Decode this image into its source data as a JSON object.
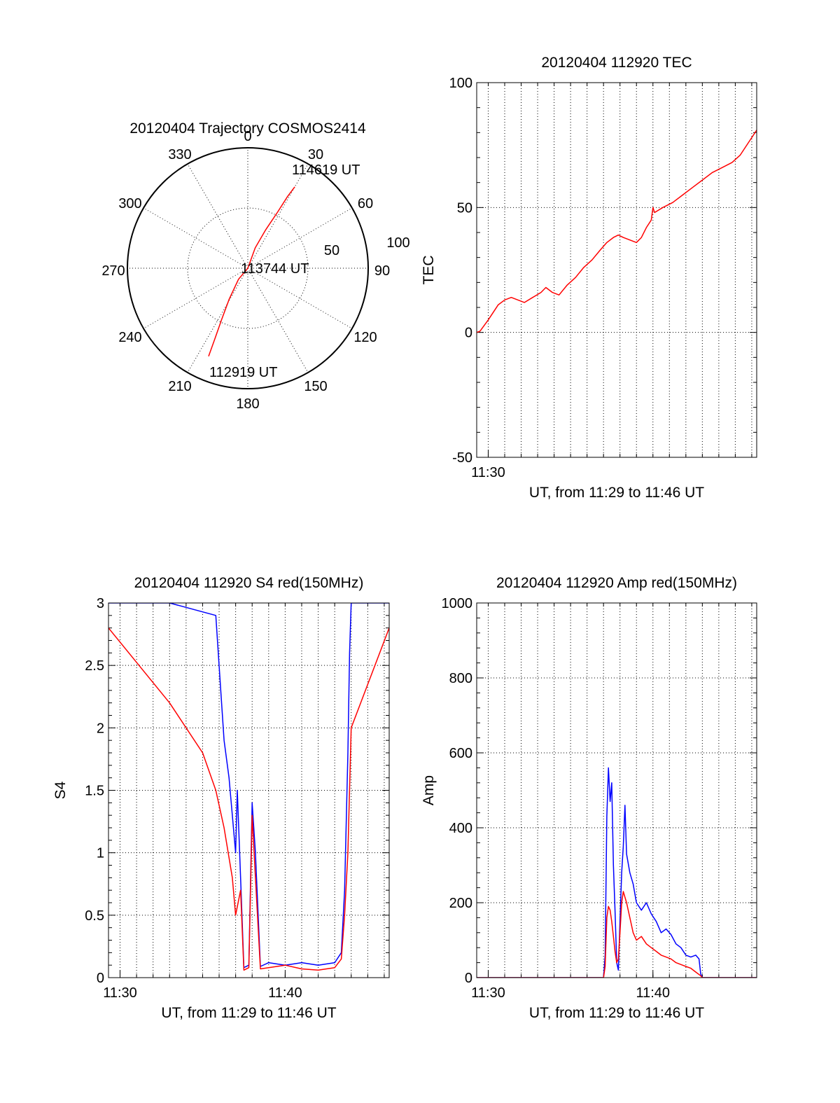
{
  "chart_data": [
    {
      "type": "polar",
      "title": "20120404 Trajectory COSMOS2414",
      "angle_labels": [
        "0",
        "30",
        "60",
        "90",
        "120",
        "150",
        "180",
        "210",
        "240",
        "270",
        "300",
        "330"
      ],
      "radius_labels": [
        "50",
        "100"
      ],
      "series": [
        {
          "color": "#ff0000",
          "points": [
            [
              204,
              80
            ],
            [
              205,
              65
            ],
            [
              207,
              48
            ],
            [
              211,
              30
            ],
            [
              220,
              12
            ],
            [
              0,
              0
            ],
            [
              20,
              18
            ],
            [
              25,
              35
            ],
            [
              28,
              53
            ],
            [
              29,
              68
            ],
            [
              30,
              78
            ]
          ]
        }
      ],
      "annotations": [
        "114619 UT",
        "113744 UT",
        "112919 UT"
      ]
    },
    {
      "type": "line",
      "title": "20120404 112920 TEC",
      "xlabel": "UT, from 11:29 to 11:46 UT",
      "ylabel": "TEC",
      "xlim": [
        689.3,
        706.3
      ],
      "ylim": [
        -50,
        100
      ],
      "yticks": [
        "100",
        "50",
        "0",
        "-50"
      ],
      "xticks": [
        {
          "value": 690,
          "label": "11:30"
        }
      ],
      "series": [
        {
          "color": "#ff0000",
          "points": [
            [
              689.3,
              0
            ],
            [
              689.5,
              0.5
            ],
            [
              690.0,
              5
            ],
            [
              690.6,
              11
            ],
            [
              691.0,
              13
            ],
            [
              691.4,
              14
            ],
            [
              691.8,
              13
            ],
            [
              692.2,
              12
            ],
            [
              692.7,
              14
            ],
            [
              693.2,
              16
            ],
            [
              693.5,
              18
            ],
            [
              693.9,
              16
            ],
            [
              694.3,
              15
            ],
            [
              694.8,
              19
            ],
            [
              695.3,
              22
            ],
            [
              695.8,
              26
            ],
            [
              696.3,
              29
            ],
            [
              696.8,
              33
            ],
            [
              697.2,
              36
            ],
            [
              697.6,
              38
            ],
            [
              697.9,
              39
            ],
            [
              698.2,
              38
            ],
            [
              698.6,
              37
            ],
            [
              699.0,
              36
            ],
            [
              699.3,
              38
            ],
            [
              699.6,
              42
            ],
            [
              699.9,
              45
            ],
            [
              700.0,
              50
            ],
            [
              700.1,
              48
            ],
            [
              700.6,
              50
            ],
            [
              701.2,
              52
            ],
            [
              701.8,
              55
            ],
            [
              702.4,
              58
            ],
            [
              703.0,
              61
            ],
            [
              703.6,
              64
            ],
            [
              704.2,
              66
            ],
            [
              704.8,
              68
            ],
            [
              705.3,
              71
            ],
            [
              705.8,
              76
            ],
            [
              706.3,
              81
            ]
          ]
        }
      ]
    },
    {
      "type": "line",
      "title": "20120404 112920 S4 red(150MHz)",
      "xlabel": "UT, from 11:29 to 11:46 UT",
      "ylabel": "S4",
      "xlim": [
        689.3,
        706.3
      ],
      "ylim": [
        0,
        3
      ],
      "yticks": [
        "3",
        "2.5",
        "2",
        "1.5",
        "1",
        "0.5",
        "0"
      ],
      "xticks": [
        {
          "value": 690,
          "label": "11:30"
        },
        {
          "value": 700,
          "label": "11:40"
        }
      ],
      "series": [
        {
          "color": "#0000ff",
          "points": [
            [
              689.3,
              3
            ],
            [
              693.0,
              3
            ],
            [
              695.8,
              2.9
            ],
            [
              696.0,
              2.5
            ],
            [
              696.3,
              1.9
            ],
            [
              696.6,
              1.6
            ],
            [
              696.8,
              1.3
            ],
            [
              697.0,
              1.0
            ],
            [
              697.1,
              1.5
            ],
            [
              697.3,
              0.8
            ],
            [
              697.5,
              0.08
            ],
            [
              697.8,
              0.1
            ],
            [
              698.0,
              1.4
            ],
            [
              698.2,
              1.0
            ],
            [
              698.5,
              0.09
            ],
            [
              699.0,
              0.12
            ],
            [
              700.0,
              0.1
            ],
            [
              701.0,
              0.12
            ],
            [
              702.0,
              0.1
            ],
            [
              703.0,
              0.12
            ],
            [
              703.4,
              0.2
            ],
            [
              703.6,
              0.7
            ],
            [
              703.8,
              1.8
            ],
            [
              703.9,
              2.6
            ],
            [
              704.0,
              3
            ],
            [
              706.3,
              3
            ]
          ]
        },
        {
          "color": "#ff0000",
          "points": [
            [
              689.3,
              2.8
            ],
            [
              693.0,
              2.2
            ],
            [
              695.0,
              1.8
            ],
            [
              695.8,
              1.5
            ],
            [
              696.3,
              1.2
            ],
            [
              696.8,
              0.8
            ],
            [
              697.0,
              0.5
            ],
            [
              697.3,
              0.7
            ],
            [
              697.5,
              0.06
            ],
            [
              697.8,
              0.08
            ],
            [
              698.0,
              1.3
            ],
            [
              698.2,
              0.8
            ],
            [
              698.5,
              0.07
            ],
            [
              699.0,
              0.08
            ],
            [
              700.0,
              0.1
            ],
            [
              701.0,
              0.07
            ],
            [
              702.0,
              0.06
            ],
            [
              703.0,
              0.08
            ],
            [
              703.4,
              0.15
            ],
            [
              703.6,
              0.5
            ],
            [
              703.8,
              1.0
            ],
            [
              704.0,
              2.0
            ],
            [
              706.3,
              2.8
            ]
          ]
        }
      ]
    },
    {
      "type": "line",
      "title": "20120404 112920 Amp red(150MHz)",
      "xlabel": "UT, from 11:29 to 11:46 UT",
      "ylabel": "Amp",
      "xlim": [
        689.3,
        706.3
      ],
      "ylim": [
        0,
        1000
      ],
      "yticks": [
        "1000",
        "800",
        "600",
        "400",
        "200",
        "0"
      ],
      "xticks": [
        {
          "value": 690,
          "label": "11:30"
        },
        {
          "value": 700,
          "label": "11:40"
        }
      ],
      "series": [
        {
          "color": "#0000ff",
          "points": [
            [
              689.3,
              0
            ],
            [
              697.0,
              0
            ],
            [
              697.1,
              60
            ],
            [
              697.2,
              430
            ],
            [
              697.3,
              560
            ],
            [
              697.4,
              470
            ],
            [
              697.5,
              520
            ],
            [
              697.6,
              300
            ],
            [
              697.7,
              180
            ],
            [
              697.8,
              40
            ],
            [
              697.9,
              20
            ],
            [
              698.0,
              150
            ],
            [
              698.1,
              280
            ],
            [
              698.2,
              350
            ],
            [
              698.3,
              460
            ],
            [
              698.4,
              330
            ],
            [
              698.6,
              280
            ],
            [
              698.8,
              250
            ],
            [
              699.0,
              200
            ],
            [
              699.3,
              180
            ],
            [
              699.6,
              200
            ],
            [
              699.9,
              170
            ],
            [
              700.2,
              150
            ],
            [
              700.5,
              120
            ],
            [
              700.8,
              130
            ],
            [
              701.1,
              115
            ],
            [
              701.4,
              90
            ],
            [
              701.7,
              80
            ],
            [
              702.0,
              60
            ],
            [
              702.3,
              55
            ],
            [
              702.6,
              60
            ],
            [
              702.8,
              50
            ],
            [
              702.9,
              10
            ],
            [
              703.0,
              0
            ],
            [
              706.3,
              0
            ]
          ]
        },
        {
          "color": "#ff0000",
          "points": [
            [
              689.3,
              0
            ],
            [
              697.0,
              0
            ],
            [
              697.1,
              30
            ],
            [
              697.2,
              160
            ],
            [
              697.3,
              190
            ],
            [
              697.4,
              180
            ],
            [
              697.5,
              150
            ],
            [
              697.6,
              110
            ],
            [
              697.7,
              70
            ],
            [
              697.8,
              40
            ],
            [
              697.9,
              50
            ],
            [
              698.0,
              120
            ],
            [
              698.1,
              200
            ],
            [
              698.2,
              230
            ],
            [
              698.4,
              200
            ],
            [
              698.6,
              160
            ],
            [
              698.8,
              120
            ],
            [
              699.0,
              100
            ],
            [
              699.3,
              110
            ],
            [
              699.6,
              90
            ],
            [
              699.9,
              80
            ],
            [
              700.2,
              70
            ],
            [
              700.5,
              60
            ],
            [
              700.8,
              55
            ],
            [
              701.1,
              50
            ],
            [
              701.4,
              40
            ],
            [
              701.7,
              35
            ],
            [
              702.0,
              30
            ],
            [
              702.3,
              25
            ],
            [
              702.6,
              15
            ],
            [
              702.9,
              5
            ],
            [
              703.0,
              0
            ],
            [
              706.3,
              0
            ]
          ]
        }
      ]
    }
  ]
}
